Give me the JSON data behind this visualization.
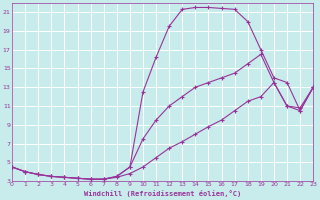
{
  "xlabel": "Windchill (Refroidissement éolien,°C)",
  "bg_color": "#c8ecec",
  "line_color": "#993399",
  "grid_color": "#ffffff",
  "xlim": [
    0,
    23
  ],
  "ylim": [
    3,
    22
  ],
  "xticks": [
    0,
    1,
    2,
    3,
    4,
    5,
    6,
    7,
    8,
    9,
    10,
    11,
    12,
    13,
    14,
    15,
    16,
    17,
    18,
    19,
    20,
    21,
    22,
    23
  ],
  "yticks": [
    3,
    5,
    7,
    9,
    11,
    13,
    15,
    17,
    19,
    21
  ],
  "curve1_x": [
    0,
    1,
    2,
    3,
    4,
    5,
    6,
    7,
    8,
    9,
    10,
    11,
    12,
    13,
    14,
    15,
    16,
    17,
    18,
    19,
    20,
    21,
    22,
    23
  ],
  "curve1_y": [
    4.5,
    4.0,
    3.7,
    3.5,
    3.4,
    3.3,
    3.2,
    3.2,
    3.5,
    4.5,
    12.5,
    16.2,
    19.5,
    21.3,
    21.5,
    21.5,
    21.4,
    21.3,
    20.0,
    17.0,
    14.0,
    13.5,
    10.5,
    13.0
  ],
  "curve2_x": [
    0,
    1,
    2,
    3,
    4,
    5,
    6,
    7,
    8,
    9,
    10,
    11,
    12,
    13,
    14,
    15,
    16,
    17,
    18,
    19,
    20,
    21,
    22,
    23
  ],
  "curve2_y": [
    4.5,
    4.0,
    3.7,
    3.5,
    3.4,
    3.3,
    3.2,
    3.2,
    3.5,
    4.5,
    7.5,
    9.5,
    11.0,
    12.0,
    13.0,
    13.5,
    14.0,
    14.5,
    15.5,
    16.5,
    13.5,
    11.0,
    10.5,
    13.0
  ],
  "curve3_x": [
    0,
    1,
    2,
    3,
    4,
    5,
    6,
    7,
    8,
    9,
    10,
    11,
    12,
    13,
    14,
    15,
    16,
    17,
    18,
    19,
    20,
    21,
    22,
    23
  ],
  "curve3_y": [
    4.5,
    4.0,
    3.7,
    3.5,
    3.4,
    3.3,
    3.2,
    3.2,
    3.4,
    3.8,
    4.5,
    5.5,
    6.5,
    7.2,
    8.0,
    8.8,
    9.5,
    10.5,
    11.5,
    12.0,
    13.5,
    11.0,
    10.8,
    13.0
  ]
}
